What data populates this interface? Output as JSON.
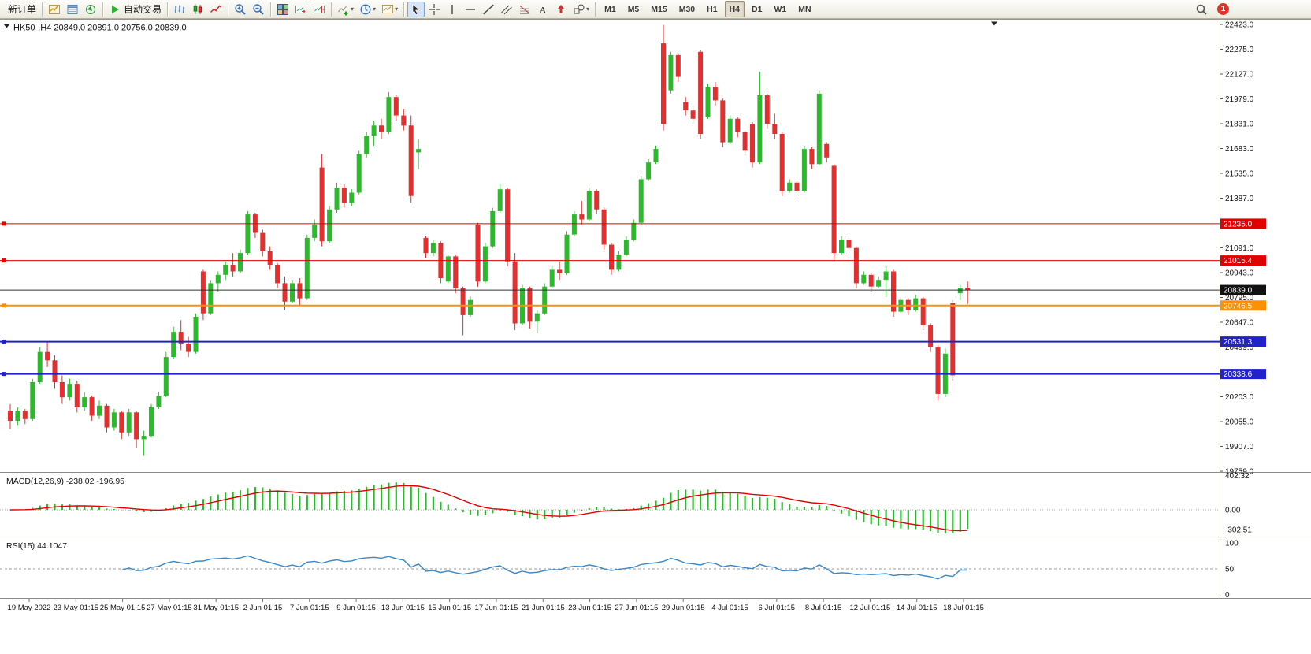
{
  "toolbar": {
    "groups": [
      {
        "items": [
          {
            "name": "new-order-button",
            "label": "新订单"
          }
        ]
      },
      {
        "items": [
          {
            "name": "market-watch-button",
            "icon": "market-watch"
          },
          {
            "name": "data-window-button",
            "icon": "data-window"
          },
          {
            "name": "navigator-button",
            "icon": "navigator"
          }
        ]
      },
      {
        "items": [
          {
            "name": "auto-trading-button",
            "icon": "auto-trading",
            "label": "自动交易"
          }
        ]
      },
      {
        "items": [
          {
            "name": "bar-chart-button",
            "icon": "bar-chart"
          },
          {
            "name": "candlestick-chart-button",
            "icon": "candle-chart"
          },
          {
            "name": "line-chart-button",
            "icon": "line-chart"
          }
        ]
      },
      {
        "items": [
          {
            "name": "zoom-in-button",
            "icon": "zoom-in"
          },
          {
            "name": "zoom-out-button",
            "icon": "zoom-out"
          }
        ]
      },
      {
        "items": [
          {
            "name": "tile-windows-button",
            "icon": "tile-windows"
          },
          {
            "name": "auto-scroll-button",
            "icon": "auto-scroll"
          },
          {
            "name": "chart-shift-button",
            "icon": "chart-shift"
          }
        ]
      },
      {
        "items": [
          {
            "name": "indicators-button",
            "icon": "indicators",
            "dropdown": true
          },
          {
            "name": "periods-button",
            "icon": "periods",
            "dropdown": true
          },
          {
            "name": "templates-button",
            "icon": "templates",
            "dropdown": true
          }
        ]
      },
      {
        "items": [
          {
            "name": "cursor-button",
            "icon": "cursor",
            "active": true
          },
          {
            "name": "crosshair-button",
            "icon": "crosshair"
          },
          {
            "name": "vertical-line-button",
            "icon": "vline"
          },
          {
            "name": "horizontal-line-button",
            "icon": "hline"
          },
          {
            "name": "trendline-button",
            "icon": "trendline"
          },
          {
            "name": "equidistant-channel-button",
            "icon": "channel"
          },
          {
            "name": "fibonacci-button",
            "icon": "fibonacci"
          },
          {
            "name": "text-button",
            "icon": "text"
          },
          {
            "name": "arrows-button",
            "icon": "arrows"
          },
          {
            "name": "shapes-button",
            "icon": "shapes",
            "dropdown": true
          }
        ]
      },
      {
        "items": [
          {
            "name": "timeframe-m1-button",
            "label": "M1",
            "tf": true
          },
          {
            "name": "timeframe-m5-button",
            "label": "M5",
            "tf": true
          },
          {
            "name": "timeframe-m15-button",
            "label": "M15",
            "tf": true
          },
          {
            "name": "timeframe-m30-button",
            "label": "M30",
            "tf": true
          },
          {
            "name": "timeframe-h1-button",
            "label": "H1",
            "tf": true
          },
          {
            "name": "timeframe-h4-button",
            "label": "H4",
            "tf": true,
            "active": true
          },
          {
            "name": "timeframe-d1-button",
            "label": "D1",
            "tf": true
          },
          {
            "name": "timeframe-w1-button",
            "label": "W1",
            "tf": true
          },
          {
            "name": "timeframe-mn-button",
            "label": "MN",
            "tf": true
          }
        ]
      }
    ],
    "right": {
      "badge": "1"
    }
  },
  "chart": {
    "title": "HK50-,H4 20849.0 20891.0 20756.0 20839.0",
    "price_axis_labels": [
      "22423.0",
      "22275.0",
      "22127.0",
      "21979.0",
      "21831.0",
      "21683.0",
      "21535.0",
      "21387.0",
      "21091.0",
      "20943.0",
      "20795.0",
      "20647.0",
      "20499.0",
      "20203.0",
      "20055.0",
      "19907.0",
      "19759.0"
    ],
    "levels": [
      {
        "name": "resistance-line-1",
        "value": 21235.0,
        "label": "21235.0",
        "color": "#e00000",
        "width": 1
      },
      {
        "name": "resistance-line-2",
        "value": 21015.4,
        "label": "21015.4",
        "color": "#e00000",
        "width": 1
      },
      {
        "name": "current-price-line",
        "value": 20839.0,
        "label": "20839.0",
        "color": "#333333",
        "width": 1,
        "current": true
      },
      {
        "name": "pivot-line",
        "value": 20746.5,
        "label": "20746.5",
        "color": "#ff9100",
        "width": 2
      },
      {
        "name": "support-line-1",
        "value": 20531.3,
        "label": "20531.3",
        "color": "#2222cc",
        "width": 2
      },
      {
        "name": "support-line-2",
        "value": 20338.6,
        "label": "20338.6",
        "color": "#2222cc",
        "width": 2
      }
    ],
    "time_labels": [
      "19 May 2022",
      "23 May 01:15",
      "25 May 01:15",
      "27 May 01:15",
      "31 May 01:15",
      "2 Jun 01:15",
      "7 Jun 01:15",
      "9 Jun 01:15",
      "13 Jun 01:15",
      "15 Jun 01:15",
      "17 Jun 01:15",
      "21 Jun 01:15",
      "23 Jun 01:15",
      "27 Jun 01:15",
      "29 Jun 01:15",
      "4 Jul 01:15",
      "6 Jul 01:15",
      "8 Jul 01:15",
      "12 Jul 01:15",
      "14 Jul 01:15",
      "18 Jul 01:15"
    ]
  },
  "indicators": {
    "macd": {
      "label": "MACD(12,26,9) -238.02 -196.95",
      "fast": 12,
      "slow": 26,
      "signal": 9,
      "axis_labels": [
        "402.32",
        "0.00",
        "-302.51"
      ],
      "histogram_color": "#2eb82e",
      "signal_color": "#e00000"
    },
    "rsi": {
      "label": "RSI(15) 44.1047",
      "period": 15,
      "axis_labels": [
        "100",
        "50",
        "0"
      ],
      "line_color": "#3a87c8",
      "level": 50
    }
  },
  "chart_data": {
    "type": "candlestick",
    "symbol": "HK50-",
    "timeframe": "H4",
    "ohlc_current": {
      "open": 20849.0,
      "high": 20891.0,
      "low": 20756.0,
      "close": 20839.0
    },
    "price_range": {
      "min": 19759.0,
      "max": 22423.0,
      "tick_step": 148
    },
    "up_color": "#2eb82e",
    "down_color": "#e03030",
    "levels": [
      21235.0,
      21015.4,
      20839.0,
      20746.5,
      20531.3,
      20338.6
    ],
    "candles": [
      [
        20120,
        20160,
        20010,
        20060
      ],
      [
        20060,
        20140,
        20030,
        20120
      ],
      [
        20120,
        20130,
        20040,
        20070
      ],
      [
        20070,
        20310,
        20060,
        20290
      ],
      [
        20290,
        20500,
        20280,
        20470
      ],
      [
        20470,
        20530,
        20380,
        20420
      ],
      [
        20420,
        20450,
        20250,
        20290
      ],
      [
        20290,
        20330,
        20160,
        20200
      ],
      [
        20200,
        20310,
        20180,
        20280
      ],
      [
        20280,
        20300,
        20110,
        20140
      ],
      [
        20140,
        20230,
        20120,
        20200
      ],
      [
        20200,
        20210,
        20060,
        20090
      ],
      [
        20090,
        20180,
        20070,
        20150
      ],
      [
        20150,
        20160,
        19990,
        20020
      ],
      [
        20020,
        20130,
        20000,
        20110
      ],
      [
        20110,
        20120,
        19950,
        19990
      ],
      [
        19990,
        20130,
        19970,
        20110
      ],
      [
        20110,
        20120,
        19900,
        19950
      ],
      [
        19950,
        20000,
        19850,
        19970
      ],
      [
        19970,
        20160,
        19960,
        20140
      ],
      [
        20140,
        20230,
        20130,
        20210
      ],
      [
        20210,
        20470,
        20200,
        20440
      ],
      [
        20440,
        20620,
        20430,
        20590
      ],
      [
        20590,
        20660,
        20480,
        20520
      ],
      [
        20520,
        20560,
        20440,
        20470
      ],
      [
        20470,
        20700,
        20460,
        20680
      ],
      [
        20950,
        20960,
        20660,
        20700
      ],
      [
        20700,
        20900,
        20690,
        20880
      ],
      [
        20880,
        20950,
        20830,
        20930
      ],
      [
        20930,
        21010,
        20900,
        20990
      ],
      [
        20990,
        21060,
        20920,
        20950
      ],
      [
        20950,
        21080,
        20940,
        21060
      ],
      [
        21060,
        21310,
        21050,
        21290
      ],
      [
        21290,
        21300,
        21150,
        21180
      ],
      [
        21180,
        21200,
        21040,
        21070
      ],
      [
        21070,
        21100,
        20960,
        20990
      ],
      [
        20990,
        21000,
        20850,
        20880
      ],
      [
        20880,
        20920,
        20720,
        20770
      ],
      [
        20770,
        20900,
        20760,
        20880
      ],
      [
        20880,
        20910,
        20750,
        20790
      ],
      [
        20790,
        21170,
        20780,
        21150
      ],
      [
        21150,
        21260,
        21130,
        21230
      ],
      [
        21570,
        21650,
        21100,
        21130
      ],
      [
        21130,
        21340,
        21120,
        21320
      ],
      [
        21320,
        21480,
        21300,
        21450
      ],
      [
        21450,
        21470,
        21330,
        21360
      ],
      [
        21360,
        21440,
        21340,
        21420
      ],
      [
        21420,
        21670,
        21410,
        21650
      ],
      [
        21650,
        21780,
        21630,
        21760
      ],
      [
        21760,
        21850,
        21700,
        21820
      ],
      [
        21820,
        21860,
        21740,
        21780
      ],
      [
        21780,
        22020,
        21770,
        21990
      ],
      [
        21990,
        22000,
        21850,
        21880
      ],
      [
        21880,
        21920,
        21790,
        21820
      ],
      [
        21820,
        21880,
        21360,
        21400
      ],
      [
        21660,
        21740,
        21560,
        21680
      ],
      [
        21150,
        21160,
        21030,
        21060
      ],
      [
        21060,
        21140,
        21040,
        21120
      ],
      [
        21120,
        21130,
        20880,
        20910
      ],
      [
        20890,
        21050,
        20880,
        21040
      ],
      [
        21040,
        21050,
        20820,
        20850
      ],
      [
        20850,
        20860,
        20570,
        20690
      ],
      [
        20690,
        20800,
        20680,
        20780
      ],
      [
        21230,
        21240,
        20860,
        20890
      ],
      [
        20890,
        21120,
        20880,
        21100
      ],
      [
        21100,
        21330,
        21090,
        21310
      ],
      [
        21310,
        21470,
        21300,
        21440
      ],
      [
        21440,
        21450,
        20980,
        21010
      ],
      [
        21010,
        21060,
        20600,
        20640
      ],
      [
        20640,
        20870,
        20630,
        20850
      ],
      [
        20850,
        20860,
        20610,
        20650
      ],
      [
        20650,
        20720,
        20580,
        20700
      ],
      [
        20700,
        20880,
        20690,
        20860
      ],
      [
        20860,
        20980,
        20850,
        20960
      ],
      [
        20960,
        21010,
        20900,
        20940
      ],
      [
        20940,
        21190,
        20930,
        21170
      ],
      [
        21170,
        21310,
        21160,
        21290
      ],
      [
        21290,
        21370,
        21230,
        21260
      ],
      [
        21260,
        21450,
        21250,
        21430
      ],
      [
        21430,
        21440,
        21290,
        21320
      ],
      [
        21320,
        21330,
        21080,
        21110
      ],
      [
        21110,
        21120,
        20930,
        20960
      ],
      [
        20960,
        21070,
        20950,
        21050
      ],
      [
        21050,
        21160,
        21040,
        21140
      ],
      [
        21140,
        21260,
        21130,
        21240
      ],
      [
        21240,
        21520,
        21230,
        21500
      ],
      [
        21500,
        21620,
        21490,
        21600
      ],
      [
        21600,
        21700,
        21590,
        21680
      ],
      [
        22310,
        22420,
        21790,
        21830
      ],
      [
        22030,
        22260,
        22010,
        22240
      ],
      [
        22240,
        22250,
        22080,
        22110
      ],
      [
        21960,
        21990,
        21880,
        21910
      ],
      [
        21910,
        21940,
        21830,
        21860
      ],
      [
        22260,
        22270,
        21740,
        21770
      ],
      [
        21870,
        22070,
        21860,
        22050
      ],
      [
        22050,
        22080,
        21940,
        21970
      ],
      [
        21970,
        21980,
        21690,
        21720
      ],
      [
        21720,
        21880,
        21710,
        21860
      ],
      [
        21860,
        21870,
        21750,
        21780
      ],
      [
        21780,
        21790,
        21640,
        21670
      ],
      [
        21830,
        21840,
        21570,
        21600
      ],
      [
        21600,
        22140,
        21590,
        22000
      ],
      [
        22000,
        22010,
        21800,
        21830
      ],
      [
        21830,
        21890,
        21740,
        21770
      ],
      [
        21770,
        21780,
        21400,
        21430
      ],
      [
        21430,
        21500,
        21420,
        21480
      ],
      [
        21480,
        21490,
        21400,
        21430
      ],
      [
        21430,
        21700,
        21420,
        21680
      ],
      [
        21680,
        21690,
        21560,
        21590
      ],
      [
        21590,
        22030,
        21580,
        22010
      ],
      [
        21710,
        21720,
        21600,
        21630
      ],
      [
        21580,
        21590,
        21020,
        21060
      ],
      [
        21060,
        21160,
        21050,
        21140
      ],
      [
        21140,
        21150,
        21060,
        21090
      ],
      [
        21090,
        21100,
        20850,
        20880
      ],
      [
        20880,
        20950,
        20870,
        20930
      ],
      [
        20930,
        20940,
        20830,
        20860
      ],
      [
        20860,
        20920,
        20850,
        20900
      ],
      [
        20900,
        20980,
        20800,
        20950
      ],
      [
        20950,
        20960,
        20680,
        20710
      ],
      [
        20710,
        20800,
        20700,
        20780
      ],
      [
        20780,
        20790,
        20690,
        20720
      ],
      [
        20720,
        20810,
        20710,
        20790
      ],
      [
        20790,
        20800,
        20600,
        20630
      ],
      [
        20630,
        20640,
        20470,
        20500
      ],
      [
        20500,
        20510,
        20180,
        20220
      ],
      [
        20220,
        20490,
        20200,
        20460
      ],
      [
        20760,
        20780,
        20300,
        20330
      ],
      [
        20820,
        20870,
        20780,
        20850
      ],
      [
        20849,
        20891,
        20756,
        20839
      ]
    ]
  }
}
